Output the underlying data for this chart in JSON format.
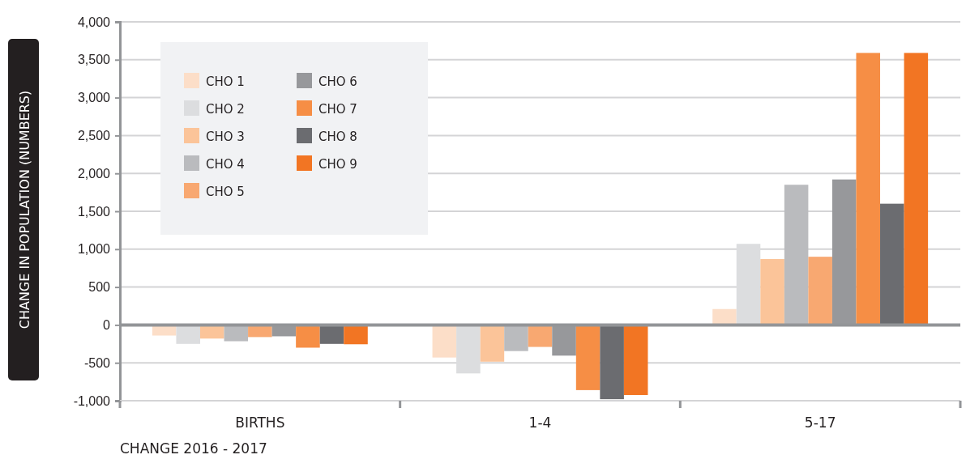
{
  "chart_data": {
    "type": "bar",
    "categories": [
      "BIRTHS",
      "1-4",
      "5-17"
    ],
    "xlabel": "CHANGE 2016 - 2017",
    "ylabel": "CHANGE IN POPULATION (NUMBERS)",
    "ylim": [
      -1000,
      4000
    ],
    "yticks": [
      {
        "value": -1000,
        "label": "-1,000"
      },
      {
        "value": -500,
        "label": "-500"
      },
      {
        "value": 0,
        "label": "0"
      },
      {
        "value": 500,
        "label": "500"
      },
      {
        "value": 1000,
        "label": "1,000"
      },
      {
        "value": 1500,
        "label": "1,500"
      },
      {
        "value": 2000,
        "label": "2,000"
      },
      {
        "value": 2500,
        "label": "2,500"
      },
      {
        "value": 3000,
        "label": "3,000"
      },
      {
        "value": 3500,
        "label": "3,500"
      },
      {
        "value": 4000,
        "label": "4,000"
      }
    ],
    "grid": "y",
    "legend": "top left",
    "series": [
      {
        "name": "CHO 1",
        "color": "#fcdec8",
        "values": [
          -140,
          -430,
          210
        ]
      },
      {
        "name": "CHO 2",
        "color": "#dcdddf",
        "values": [
          -250,
          -640,
          1070
        ]
      },
      {
        "name": "CHO 3",
        "color": "#fbc499",
        "values": [
          -180,
          -485,
          870
        ]
      },
      {
        "name": "CHO 4",
        "color": "#babbbe",
        "values": [
          -215,
          -345,
          1850
        ]
      },
      {
        "name": "CHO 5",
        "color": "#f8a871",
        "values": [
          -160,
          -290,
          900
        ]
      },
      {
        "name": "CHO 6",
        "color": "#97989b",
        "values": [
          -150,
          -405,
          1920
        ]
      },
      {
        "name": "CHO 7",
        "color": "#f68e45",
        "values": [
          -300,
          -860,
          3590
        ]
      },
      {
        "name": "CHO 8",
        "color": "#6b6c70",
        "values": [
          -250,
          -980,
          1600
        ]
      },
      {
        "name": "CHO 9",
        "color": "#f27523",
        "values": [
          -255,
          -925,
          3590
        ]
      }
    ]
  }
}
